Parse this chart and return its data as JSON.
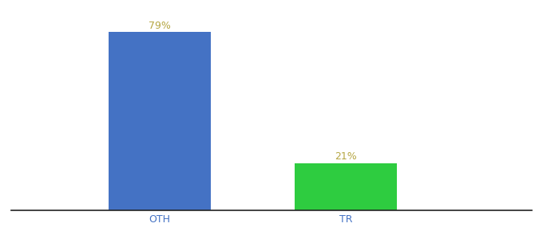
{
  "categories": [
    "OTH",
    "TR"
  ],
  "values": [
    79,
    21
  ],
  "bar_colors": [
    "#4472c4",
    "#2ecc40"
  ],
  "label_color": "#b5a642",
  "label_texts": [
    "79%",
    "21%"
  ],
  "xlabel_color": "#4472c4",
  "background_color": "#ffffff",
  "ylim": [
    0,
    88
  ],
  "bar_width": 0.55,
  "label_fontsize": 9,
  "tick_fontsize": 9,
  "spine_color": "#222222"
}
